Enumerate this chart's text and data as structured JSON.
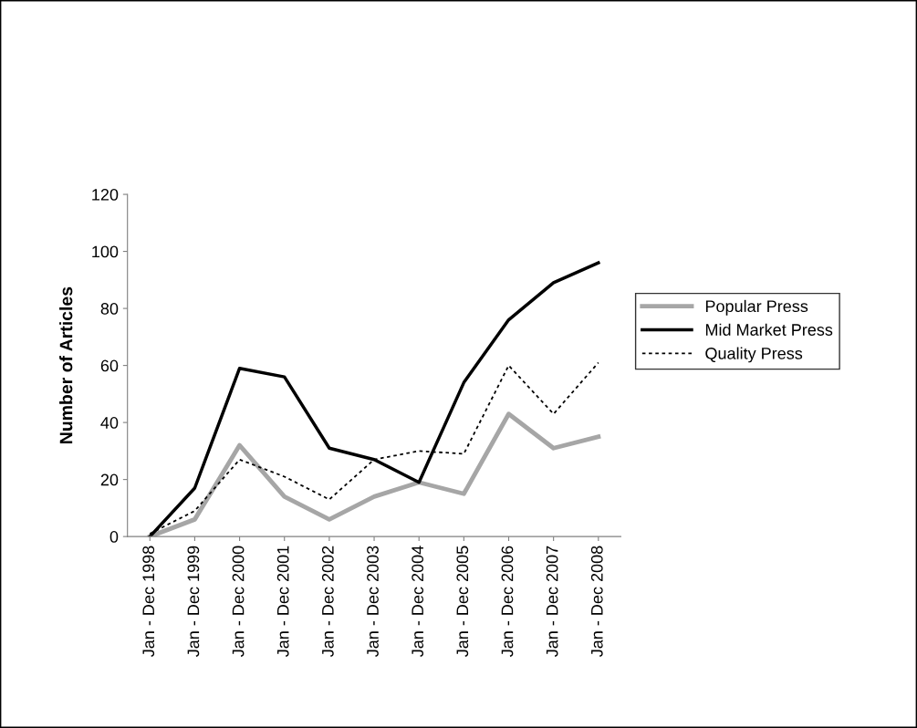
{
  "chart_data": {
    "type": "line",
    "ylabel": "Number of Articles",
    "categories": [
      "Jan - Dec 1998",
      "Jan - Dec 1999",
      "Jan - Dec 2000",
      "Jan - Dec 2001",
      "Jan - Dec 2002",
      "Jan - Dec 2003",
      "Jan - Dec 2004",
      "Jan - Dec 2005",
      "Jan - Dec 2006",
      "Jan - Dec 2007",
      "Jan - Dec 2008"
    ],
    "series": [
      {
        "name": "Popular Press",
        "color": "#a6a6a6",
        "line_style": "solid",
        "values": [
          0,
          6,
          32,
          14,
          6,
          14,
          19,
          15,
          43,
          31,
          35
        ]
      },
      {
        "name": "Mid Market Press",
        "color": "#000000",
        "line_style": "solid",
        "values": [
          0,
          17,
          59,
          56,
          31,
          27,
          19,
          54,
          76,
          89,
          96
        ]
      },
      {
        "name": "Quality Press",
        "color": "#000000",
        "line_style": "dotted",
        "values": [
          1,
          9,
          27,
          21,
          13,
          27,
          30,
          29,
          60,
          43,
          61
        ]
      }
    ],
    "ylim": [
      0,
      120
    ],
    "yticks": [
      0,
      20,
      40,
      60,
      80,
      100,
      120
    ],
    "grid": false,
    "legend": "right",
    "marker": "none"
  }
}
